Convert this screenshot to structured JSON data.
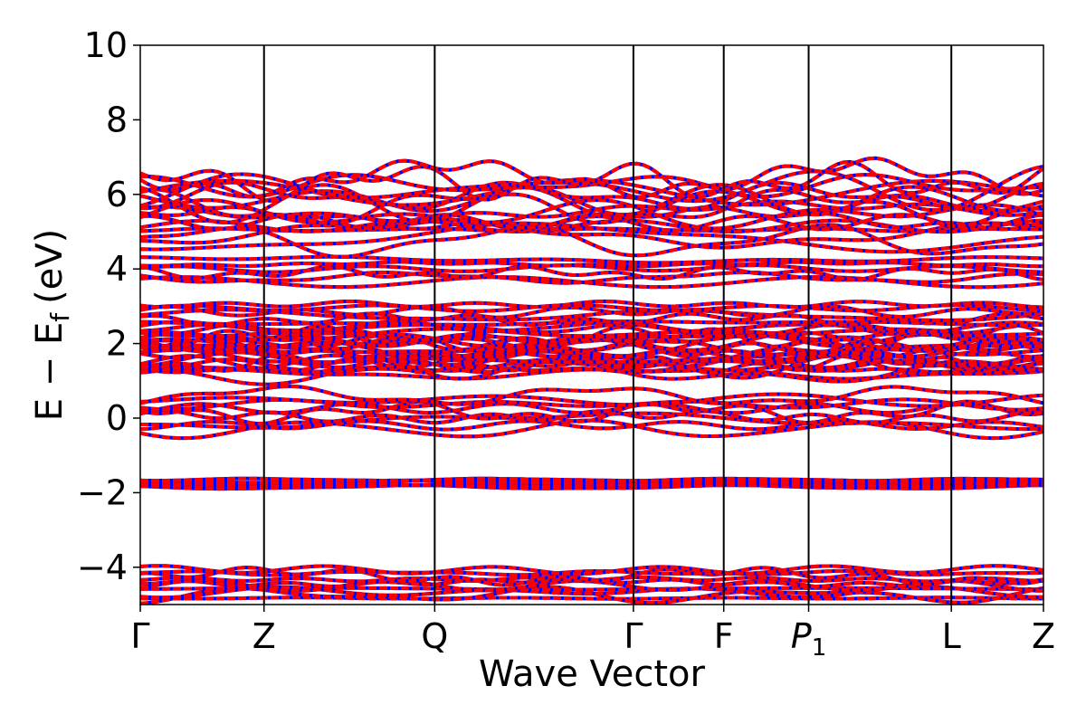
{
  "chart_data": {
    "type": "line",
    "xlabel": "Wave Vector",
    "ylabel": {
      "main": "E − E",
      "subscript": "f",
      "unit": "(eV)"
    },
    "ylim": [
      -5,
      10
    ],
    "y_ticks": [
      "−4",
      "−2",
      "0",
      "2",
      "4",
      "6",
      "8",
      "10"
    ],
    "y_tick_values": [
      -4,
      -2,
      0,
      2,
      4,
      6,
      8,
      10
    ],
    "kpath": [
      {
        "label": "Γ",
        "x": 0.0
      },
      {
        "label": "Z",
        "x": 0.137
      },
      {
        "label": "Q",
        "x": 0.326
      },
      {
        "label": "Γ",
        "x": 0.546
      },
      {
        "label": "F",
        "x": 0.646
      },
      {
        "label": "P",
        "subscript": "1",
        "x": 0.74
      },
      {
        "label": "L",
        "x": 0.898
      },
      {
        "label": "Z",
        "x": 1.0
      }
    ],
    "grid": false,
    "legend": "none",
    "series": [
      {
        "color": "#0000ff",
        "style": "solid"
      },
      {
        "color": "#ff0000",
        "style": "dashed"
      }
    ],
    "band_groups": [
      {
        "center": -4.45,
        "spread": 0.38,
        "count": 10
      },
      {
        "center": -1.75,
        "spread": 0.1,
        "count": 5
      },
      {
        "center": 0.15,
        "spread": 0.45,
        "count": 9
      },
      {
        "center": 1.75,
        "spread": 0.55,
        "count": 22
      },
      {
        "center": 2.7,
        "spread": 0.35,
        "count": 8
      },
      {
        "center": 3.95,
        "spread": 0.3,
        "count": 6
      },
      {
        "center": 5.6,
        "spread": 0.85,
        "count": 18
      }
    ]
  }
}
